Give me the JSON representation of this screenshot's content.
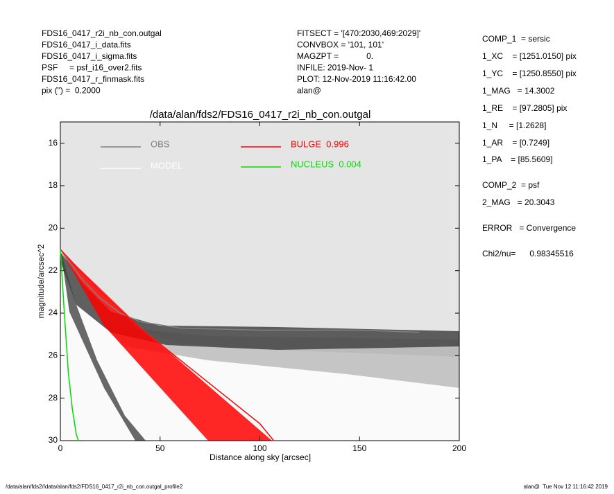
{
  "header": {
    "left": [
      "FDS16_0417_r2i_nb_con.outgal",
      "FDS16_0417_i_data.fits",
      "FDS16_0417_i_sigma.fits",
      "PSF     = psf_i16_over2.fits",
      "FDS16_0417_r_finmask.fits",
      "pix (\") =  0.2000"
    ],
    "center": [
      "FITSECT = '[470:2030,469:2029]'",
      "CONVBOX = '101, 101'",
      "MAGZPT =            0.",
      "INFILE: 2019-Nov- 1",
      "PLOT: 12-Nov-2019 11:16:42.00",
      "alan@"
    ],
    "right": [
      "COMP_1  = sersic",
      "1_XC    = [1251.0150] pix",
      "1_YC    = [1250.8550] pix",
      "1_MAG   = 14.3002",
      "1_RE    = [97.2805] pix",
      "1_N     = [1.2628]",
      "1_AR    = [0.7249]",
      "1_PA    = [85.5609]",
      "COMP_2  = psf",
      "2_MAG   = 20.3043",
      "ERROR   = Convergence",
      "Chi2/nu=      0.98345516"
    ]
  },
  "footer": {
    "left": "/data/alan/fds2//data/alan/fds2/FDS16_0417_r2i_nb_con.outgal_profile2",
    "right": "alan@  Tue Nov 12 11:16:42 2019"
  },
  "chart_data": {
    "type": "line",
    "title": "/data/alan/fds2/FDS16_0417_r2i_nb_con.outgal",
    "xlabel": "Distance along sky [arcsec]",
    "ylabel": "magnitude/arcsec^2",
    "xlim": [
      0,
      200
    ],
    "xticks": [
      0,
      50,
      100,
      150,
      200
    ],
    "ylim": [
      30,
      15
    ],
    "yticks": [
      16,
      18,
      20,
      22,
      24,
      26,
      28,
      30
    ],
    "background": "#e5e5e5",
    "series": [
      {
        "name": "OBS",
        "color": "#808080",
        "x": [
          0,
          10,
          20,
          30,
          40,
          60,
          100,
          150,
          180
        ],
        "values": [
          21,
          22.3,
          23.3,
          24,
          24.4,
          24.7,
          24.8,
          24.8,
          24.9
        ]
      },
      {
        "name": "MODEL",
        "color": "#ffffff",
        "x": [
          0,
          20,
          40,
          60,
          80,
          100,
          107
        ],
        "values": [
          21,
          23,
          24.7,
          26.2,
          27.7,
          29.2,
          30
        ]
      },
      {
        "name": "BULGE  0.996",
        "color": "#ff0000",
        "x": [
          0,
          20,
          40,
          60,
          80,
          100,
          107
        ],
        "values": [
          21,
          23,
          24.7,
          26.2,
          27.7,
          29.2,
          30
        ]
      },
      {
        "name": "NUCLEUS  0.004",
        "color": "#00dd00",
        "x": [
          0,
          2,
          4,
          6,
          8,
          9
        ],
        "values": [
          21,
          24,
          26.8,
          28.5,
          29.7,
          30
        ]
      }
    ]
  }
}
